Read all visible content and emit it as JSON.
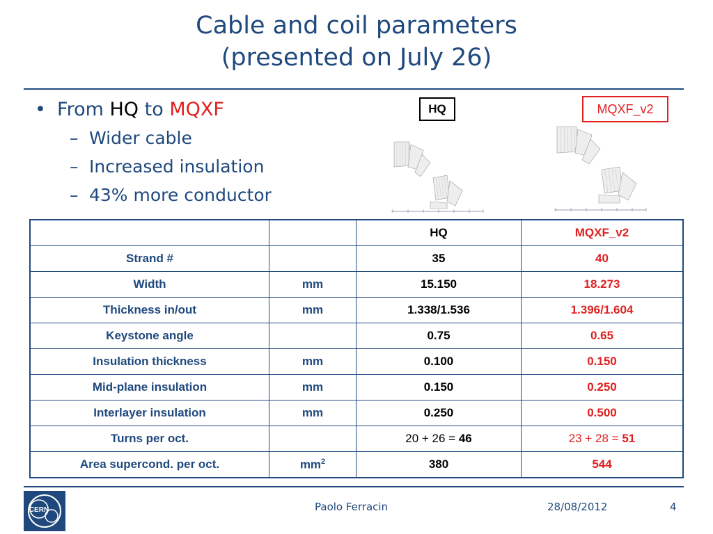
{
  "title": {
    "line1": "Cable and coil parameters",
    "line2": "(presented on July 26)"
  },
  "bullets": {
    "from": "From",
    "hq": "HQ",
    "to": "to",
    "mqxf": "MQXF",
    "subs": [
      "Wider cable",
      "Increased insulation",
      "43% more conductor"
    ]
  },
  "boxes": {
    "hq": "HQ",
    "mqxf": "MQXF_v2"
  },
  "table": {
    "header": {
      "hq": "HQ",
      "mqxf": "MQXF_v2"
    },
    "rows": [
      {
        "label": "Strand #",
        "unit": "",
        "hq": "35",
        "mqxf": "40"
      },
      {
        "label": "Width",
        "unit": "mm",
        "hq": "15.150",
        "mqxf": "18.273"
      },
      {
        "label": "Thickness in/out",
        "unit": "mm",
        "hq": "1.338/1.536",
        "mqxf": "1.396/1.604"
      },
      {
        "label": "Keystone angle",
        "unit": "",
        "hq": "0.75",
        "mqxf": "0.65"
      },
      {
        "label": "Insulation thickness",
        "unit": "mm",
        "hq": "0.100",
        "mqxf": "0.150"
      },
      {
        "label": "Mid-plane insulation",
        "unit": "mm",
        "hq": "0.150",
        "mqxf": "0.250"
      },
      {
        "label": "Interlayer insulation",
        "unit": "mm",
        "hq": "0.250",
        "mqxf": "0.500"
      }
    ],
    "turns": {
      "label": "Turns per oct.",
      "hq_expr": "20 + 26 = ",
      "hq_total": "46",
      "mqxf_expr": "23 + 28 = ",
      "mqxf_total": "51"
    },
    "area": {
      "label": "Area supercond. per oct.",
      "unit": "mm",
      "unit_sup": "2",
      "hq": "380",
      "mqxf": "544"
    }
  },
  "footer": {
    "author": "Paolo Ferracin",
    "date": "28/08/2012",
    "page": "4"
  },
  "logo": {
    "text": "CERN"
  },
  "colors": {
    "accent": "#1f497d",
    "red": "#e02020"
  }
}
